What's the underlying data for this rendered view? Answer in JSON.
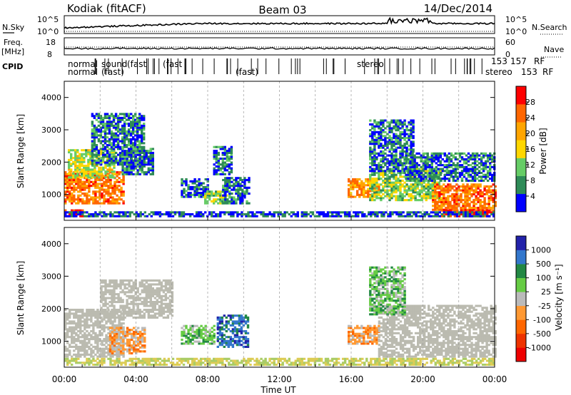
{
  "header": {
    "radar": "Kodiak (fitACF)",
    "beam": "Beam 03",
    "date": "14/Dec/2014"
  },
  "strips": {
    "nsky_label": "N.Sky",
    "nsearch_label": "N.Search",
    "nsky_ticks": [
      "10^5",
      "10^0"
    ],
    "nsearch_ticks": [
      "10^5",
      "10^0"
    ],
    "freq_label_1": "Freq.",
    "freq_label_2": "[MHz]",
    "freq_ticks": [
      "18",
      "8"
    ],
    "nave_label": "Nave",
    "nave_ticks": [
      "60",
      "0"
    ],
    "cpid_label": "CPID",
    "cpid_line1": [
      "normal",
      "sound",
      "(fast",
      "(fast",
      "stereo",
      "153",
      "157",
      "RF"
    ],
    "cpid_line2": [
      "normal",
      "(fast)",
      "(fast)",
      "stereo",
      "153",
      "RF"
    ]
  },
  "colors": {
    "power": [
      "#0000ff",
      "#2e8b57",
      "#66cd66",
      "#ffd700",
      "#ffa500",
      "#ff6600",
      "#ff0000"
    ],
    "velocity": [
      "#2222aa",
      "#3377cc",
      "#228844",
      "#66cc44",
      "#bbbbbb",
      "#ff9933",
      "#ff6600",
      "#ee3300",
      "#ee0000"
    ],
    "ground": "#bbbbb0"
  },
  "chart_data": [
    {
      "type": "heatmap",
      "ylabel": "Slant Range [km]",
      "ylim": [
        200,
        4500
      ],
      "yticks": [
        1000,
        2000,
        3000,
        4000
      ],
      "colorbar_label": "Power [dB]",
      "colorbar_ticks": [
        "4",
        "8",
        "12",
        "16",
        "20",
        "24",
        "28"
      ],
      "clim": [
        0,
        32
      ],
      "regions": [
        {
          "t0": 0.0,
          "t1": 3.3,
          "r0": 700,
          "r1": 1700,
          "level": 24
        },
        {
          "t0": 0.2,
          "t1": 2.8,
          "r0": 1500,
          "r1": 2400,
          "level": 14
        },
        {
          "t0": 1.5,
          "t1": 4.4,
          "r0": 1900,
          "r1": 3500,
          "level": 6
        },
        {
          "t0": 3.2,
          "t1": 5.0,
          "r0": 1600,
          "r1": 2400,
          "level": 6
        },
        {
          "t0": 0.0,
          "t1": 1.0,
          "r0": 300,
          "r1": 500,
          "level": 28
        },
        {
          "t0": 6.5,
          "t1": 8.0,
          "r0": 900,
          "r1": 1500,
          "level": 6
        },
        {
          "t0": 7.8,
          "t1": 9.0,
          "r0": 700,
          "r1": 1100,
          "level": 12
        },
        {
          "t0": 8.3,
          "t1": 9.3,
          "r0": 1600,
          "r1": 2500,
          "level": 6
        },
        {
          "t0": 8.8,
          "t1": 10.3,
          "r0": 700,
          "r1": 1500,
          "level": 6
        },
        {
          "t0": 15.8,
          "t1": 17.5,
          "r0": 900,
          "r1": 1500,
          "level": 22
        },
        {
          "t0": 17.0,
          "t1": 21.0,
          "r0": 800,
          "r1": 1800,
          "level": 12
        },
        {
          "t0": 17.0,
          "t1": 19.5,
          "r0": 1700,
          "r1": 3300,
          "level": 6
        },
        {
          "t0": 19.0,
          "t1": 24.0,
          "r0": 1400,
          "r1": 2300,
          "level": 6
        },
        {
          "t0": 20.5,
          "t1": 24.0,
          "r0": 500,
          "r1": 1300,
          "level": 24
        },
        {
          "t0": 21.0,
          "t1": 24.0,
          "r0": 300,
          "r1": 500,
          "level": 28
        },
        {
          "t0": 0.0,
          "t1": 24.0,
          "r0": 300,
          "r1": 450,
          "level": 4
        }
      ]
    },
    {
      "type": "heatmap",
      "ylabel": "Slant Range [km]",
      "ylim": [
        200,
        4500
      ],
      "yticks": [
        1000,
        2000,
        3000,
        4000
      ],
      "colorbar_label": "Velocity [m s⁻¹]",
      "colorbar_ticks": [
        "1000",
        "500",
        "100",
        "25",
        "-25",
        "-100",
        "-500",
        "-1000"
      ],
      "xlabel": "Time UT",
      "xticks": [
        "00:00",
        "04:00",
        "08:00",
        "12:00",
        "16:00",
        "20:00",
        "00:00"
      ],
      "xlim": [
        0,
        24
      ],
      "regions": [
        {
          "t0": 0.0,
          "t1": 3.3,
          "r0": 500,
          "r1": 2000,
          "class": "ground"
        },
        {
          "t0": 2.0,
          "t1": 6.0,
          "r0": 1700,
          "r1": 2900,
          "class": "ground"
        },
        {
          "t0": 2.5,
          "t1": 4.5,
          "r0": 600,
          "r1": 1400,
          "class": "-100"
        },
        {
          "t0": 6.5,
          "t1": 8.3,
          "r0": 900,
          "r1": 1500,
          "class": "100"
        },
        {
          "t0": 8.5,
          "t1": 10.2,
          "r0": 800,
          "r1": 1800,
          "class": "500"
        },
        {
          "t0": 15.8,
          "t1": 17.5,
          "r0": 900,
          "r1": 1500,
          "class": "-100"
        },
        {
          "t0": 17.5,
          "t1": 24.0,
          "r0": 500,
          "r1": 2100,
          "class": "ground"
        },
        {
          "t0": 17.0,
          "t1": 19.0,
          "r0": 1800,
          "r1": 3300,
          "class": "100"
        },
        {
          "t0": 0.0,
          "t1": 24.0,
          "r0": 250,
          "r1": 450,
          "class": "25"
        }
      ]
    }
  ]
}
